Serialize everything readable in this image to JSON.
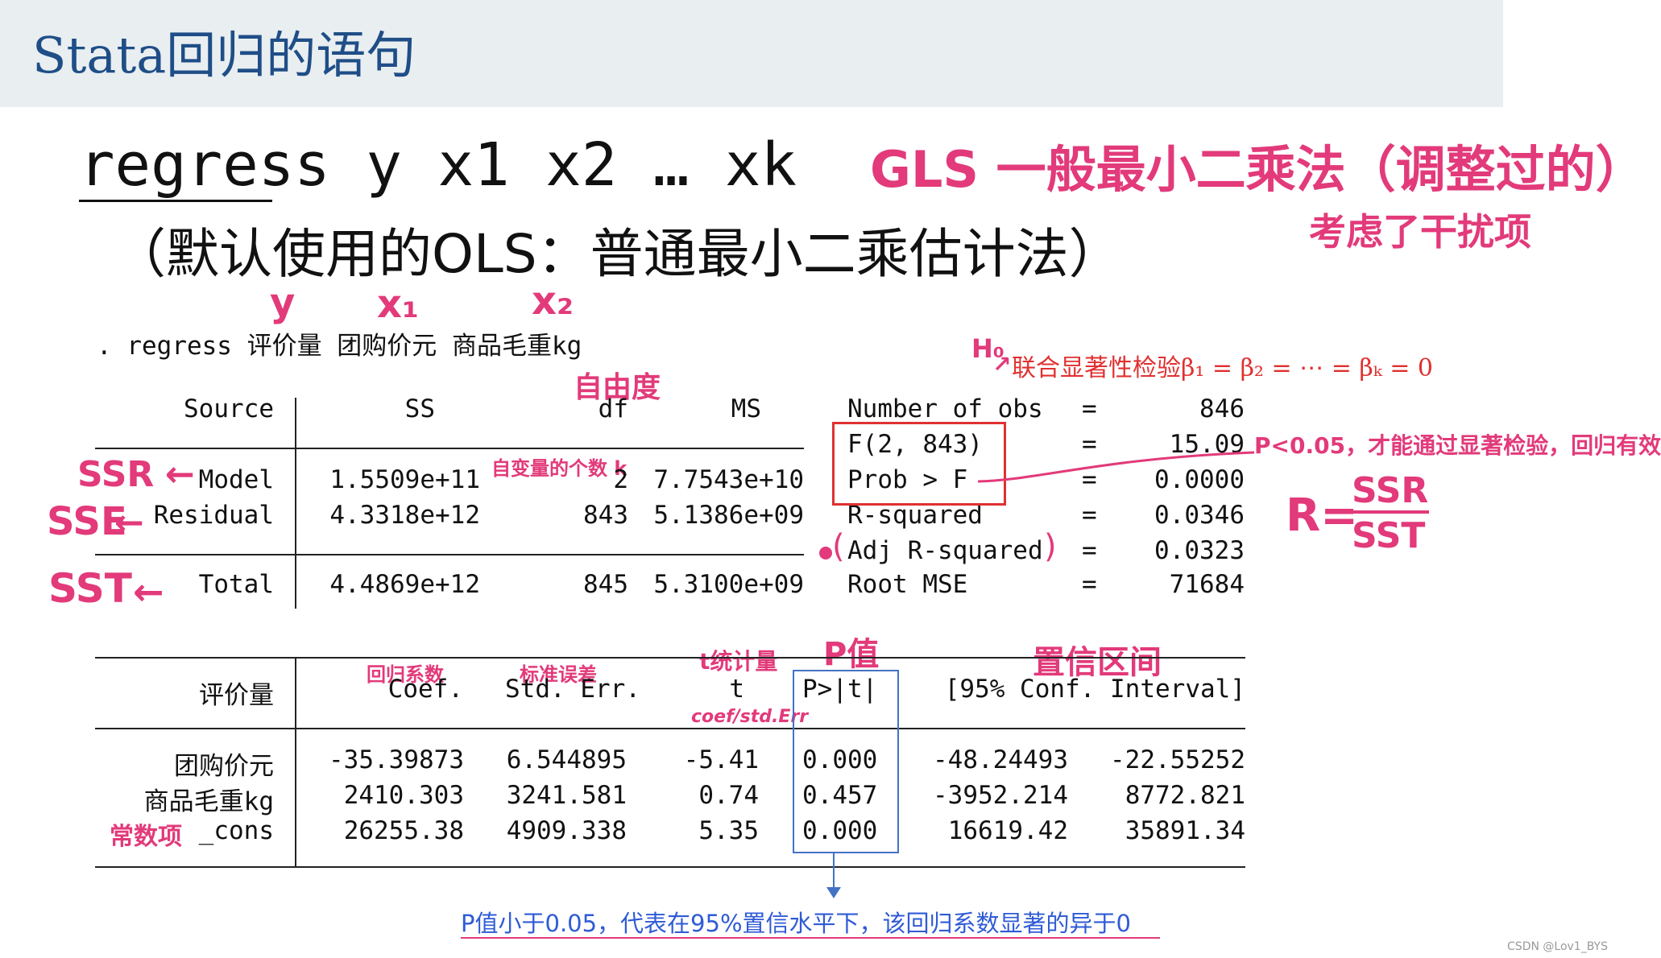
{
  "header": {
    "title": "Stata回归的语句"
  },
  "command": {
    "syntax": "regress y x1 x2 … xk",
    "note": "（默认使用的OLS：普通最小二乘估计法）"
  },
  "stata_cmd": ". regress 评价量 团购价元 商品毛重kg",
  "anova": {
    "headers": [
      "Source",
      "SS",
      "df",
      "MS"
    ],
    "rows": [
      {
        "source": "Model",
        "ss": "1.5509e+11",
        "df": "2",
        "ms": "7.7543e+10"
      },
      {
        "source": "Residual",
        "ss": "4.3318e+12",
        "df": "843",
        "ms": "5.1386e+09"
      },
      {
        "source": "Total",
        "ss": "4.4869e+12",
        "df": "845",
        "ms": "5.3100e+09"
      }
    ]
  },
  "fit": [
    {
      "label": "Number of obs",
      "eq": "=",
      "value": "846"
    },
    {
      "label": "F(2, 843)",
      "eq": "=",
      "value": "15.09"
    },
    {
      "label": "Prob > F",
      "eq": "=",
      "value": "0.0000"
    },
    {
      "label": "R-squared",
      "eq": "=",
      "value": "0.0346"
    },
    {
      "label": "Adj R-squared",
      "eq": "=",
      "value": "0.0323"
    },
    {
      "label": "Root MSE",
      "eq": "=",
      "value": "71684"
    }
  ],
  "coef": {
    "headers": {
      "dep": "评价量",
      "coef": "Coef.",
      "se": "Std. Err.",
      "t": "t",
      "p": "P>|t|",
      "ci": "[95% Conf. Interval]"
    },
    "rows": [
      {
        "name": "团购价元",
        "coef": "-35.39873",
        "se": "6.544895",
        "t": "-5.41",
        "p": "0.000",
        "lo": "-48.24493",
        "hi": "-22.55252"
      },
      {
        "name": "商品毛重kg",
        "coef": "2410.303",
        "se": "3241.581",
        "t": "0.74",
        "p": "0.457",
        "lo": "-3952.214",
        "hi": "8772.821"
      },
      {
        "name": "_cons",
        "coef": "26255.38",
        "se": "4909.338",
        "t": "5.35",
        "p": "0.000",
        "lo": "16619.42",
        "hi": "35891.34"
      }
    ]
  },
  "annotations": {
    "gls": "GLS 一般最小二乘法（调整过的）",
    "gls_sub": "考虑了干扰项",
    "y": "y",
    "x1": "x₁",
    "x2": "x₂",
    "dof": "自由度",
    "k_vars": "自变量的个数 k",
    "ssr": "SSR",
    "sse": "SSE",
    "sst": "SST",
    "h0": "H₀",
    "joint_test": "联合显著性检验β₁ = β₂ = ⋯ = βₖ = 0",
    "p_note": "P<0.05，才能通过显著检验，回归有效",
    "r_formula": "R=SSR/SST",
    "r_num": "SSR",
    "r_den": "SST",
    "r_lhs": "R=",
    "coef_note": "回归系数",
    "se_note": "标准误差",
    "t_note": "t统计量",
    "p_value": "P值",
    "ci_note": "置信区间",
    "t_formula": "coef/std.Err",
    "cons_note": "常数项",
    "p_conclusion": "P值小于0.05，代表在95%置信水平下，该回归系数显著的异于0"
  },
  "watermark": "CSDN @Lov1_BYS",
  "colors": {
    "title": "#1f4e87",
    "handwriting": "#e23a7a",
    "red": "#e03030",
    "blue": "#4472c4"
  }
}
